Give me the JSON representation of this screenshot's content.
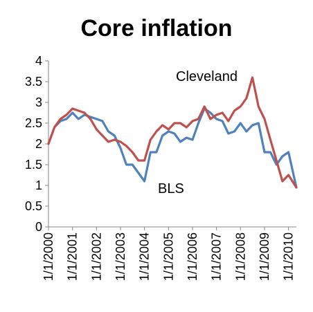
{
  "chart_data": {
    "type": "line",
    "title": "Core inflation",
    "xlabel": "",
    "ylabel": "",
    "ylim": [
      0,
      4
    ],
    "yticks": [
      "0",
      "0.5",
      "1",
      "1.5",
      "2",
      "2.5",
      "3",
      "3.5",
      "4"
    ],
    "xticks": [
      "1/1/2000",
      "1/1/2001",
      "1/1/2002",
      "1/1/2003",
      "1/1/2004",
      "1/1/2005",
      "1/1/2006",
      "1/1/2007",
      "1/1/2008",
      "1/1/2009",
      "1/1/2010"
    ],
    "grid": false,
    "legend": "none",
    "x_start": "1/1/2000",
    "x_end": "5/1/2010",
    "series": [
      {
        "name": "BLS",
        "label": "BLS",
        "color": "#4F81BD",
        "x": [
          "1/1/2000",
          "4/1/2000",
          "7/1/2000",
          "10/1/2000",
          "1/1/2001",
          "4/1/2001",
          "7/1/2001",
          "10/1/2001",
          "1/1/2002",
          "4/1/2002",
          "7/1/2002",
          "10/1/2002",
          "1/1/2003",
          "4/1/2003",
          "7/1/2003",
          "10/1/2003",
          "1/1/2004",
          "4/1/2004",
          "7/1/2004",
          "10/1/2004",
          "1/1/2005",
          "4/1/2005",
          "7/1/2005",
          "10/1/2005",
          "1/1/2006",
          "4/1/2006",
          "7/1/2006",
          "10/1/2006",
          "1/1/2007",
          "4/1/2007",
          "7/1/2007",
          "10/1/2007",
          "1/1/2008",
          "4/1/2008",
          "7/1/2008",
          "10/1/2008",
          "1/1/2009",
          "4/1/2009",
          "7/1/2009",
          "10/1/2009",
          "1/1/2010",
          "5/1/2010"
        ],
        "values": [
          2.0,
          2.4,
          2.55,
          2.6,
          2.75,
          2.6,
          2.7,
          2.65,
          2.6,
          2.55,
          2.3,
          2.2,
          1.9,
          1.5,
          1.5,
          1.3,
          1.1,
          1.8,
          1.8,
          2.2,
          2.3,
          2.25,
          2.05,
          2.15,
          2.1,
          2.5,
          2.85,
          2.75,
          2.6,
          2.55,
          2.25,
          2.3,
          2.5,
          2.3,
          2.45,
          2.5,
          1.8,
          1.8,
          1.5,
          1.7,
          1.8,
          0.95
        ]
      },
      {
        "name": "Cleveland",
        "label": "Cleveland",
        "color": "#C0504D",
        "x": [
          "1/1/2000",
          "4/1/2000",
          "7/1/2000",
          "10/1/2000",
          "1/1/2001",
          "4/1/2001",
          "7/1/2001",
          "10/1/2001",
          "1/1/2002",
          "4/1/2002",
          "7/1/2002",
          "10/1/2002",
          "1/1/2003",
          "4/1/2003",
          "7/1/2003",
          "10/1/2003",
          "1/1/2004",
          "4/1/2004",
          "7/1/2004",
          "10/1/2004",
          "1/1/2005",
          "4/1/2005",
          "7/1/2005",
          "10/1/2005",
          "1/1/2006",
          "4/1/2006",
          "7/1/2006",
          "10/1/2006",
          "1/1/2007",
          "4/1/2007",
          "7/1/2007",
          "10/1/2007",
          "1/1/2008",
          "4/1/2008",
          "7/1/2008",
          "10/1/2008",
          "1/1/2009",
          "4/1/2009",
          "7/1/2009",
          "10/1/2009",
          "1/1/2010",
          "5/1/2010"
        ],
        "values": [
          2.0,
          2.4,
          2.6,
          2.7,
          2.85,
          2.8,
          2.75,
          2.6,
          2.35,
          2.2,
          2.05,
          2.1,
          2.05,
          1.95,
          1.8,
          1.6,
          1.6,
          2.1,
          2.3,
          2.45,
          2.35,
          2.5,
          2.5,
          2.4,
          2.55,
          2.6,
          2.9,
          2.6,
          2.7,
          2.75,
          2.55,
          2.8,
          2.9,
          3.1,
          3.6,
          2.9,
          2.6,
          2.1,
          1.6,
          1.1,
          1.25,
          0.95
        ]
      }
    ]
  }
}
